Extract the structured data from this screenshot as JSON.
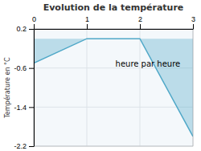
{
  "chart_data": {
    "type": "area",
    "title": "Evolution de la température",
    "y_label": "Température en °C",
    "x": [
      0,
      1,
      2,
      3
    ],
    "values": [
      -0.5,
      0.0,
      0.0,
      -2.0
    ],
    "color": "#50a8c8",
    "xlim": [
      0,
      3
    ],
    "ylim": [
      -2.2,
      0.2
    ],
    "xticks": [
      0,
      1,
      2,
      3
    ],
    "yticks": [
      0.2,
      -0.6,
      -1.4,
      -2.2
    ],
    "grid": true,
    "annotations": [
      {
        "text": "heure par heure",
        "x": 2.15,
        "y": -0.45
      }
    ]
  }
}
